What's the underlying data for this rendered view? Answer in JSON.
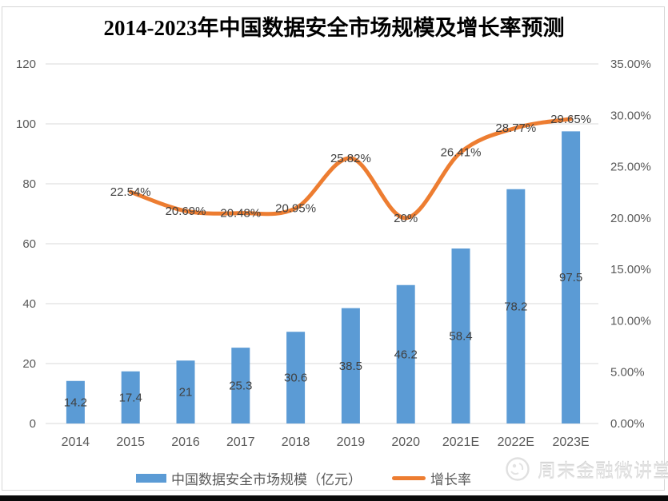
{
  "title": "2014-2023年中国数据安全市场规模及增长率预测",
  "watermark": {
    "text": "周末金融微讲堂",
    "icon": "wechat-account-logo-icon"
  },
  "footer": {
    "bar_color": "#0a0a0a"
  },
  "colors": {
    "bar": "#5B9BD5",
    "line": "#ED7D31",
    "grid": "#D9D9D9",
    "axis_text": "#595959",
    "data_label": "#404040",
    "frame": "#D6D6D6"
  },
  "legend": {
    "position": "bottom",
    "items": [
      {
        "label": "中国数据安全市场规模（亿元）",
        "marker": "bar-swatch",
        "color": "#5B9BD5"
      },
      {
        "label": "增长率",
        "marker": "line-swatch",
        "color": "#ED7D31"
      }
    ]
  },
  "chart_data": {
    "type": "combo-bar-line",
    "title": "2014-2023年中国数据安全市场规模及增长率预测",
    "categories": [
      "2014",
      "2015",
      "2016",
      "2017",
      "2018",
      "2019",
      "2020",
      "2021E",
      "2022E",
      "2023E"
    ],
    "series": [
      {
        "name": "中国数据安全市场规模（亿元）",
        "type": "bar",
        "axis": "left",
        "color": "#5B9BD5",
        "values": [
          14.2,
          17.4,
          21,
          25.3,
          30.6,
          38.5,
          46.2,
          58.4,
          78.2,
          97.5
        ],
        "data_labels": [
          "14.2",
          "17.4",
          "21",
          "25.3",
          "30.6",
          "38.5",
          "46.2",
          "58.4",
          "78.2",
          "97.5"
        ]
      },
      {
        "name": "增长率",
        "type": "line",
        "axis": "right",
        "smooth": true,
        "color": "#ED7D31",
        "categories": [
          "2015",
          "2016",
          "2017",
          "2018",
          "2019",
          "2020",
          "2021E",
          "2022E",
          "2023E"
        ],
        "values": [
          22.54,
          20.69,
          20.48,
          20.95,
          25.82,
          20,
          26.41,
          28.77,
          29.65
        ],
        "unit": "%",
        "data_labels": [
          "22.54%",
          "20.69%",
          "20.48%",
          "20.95%",
          "25.82%",
          "20%",
          "26.41%",
          "28.77%",
          "29.65%"
        ]
      }
    ],
    "left_axis": {
      "min": 0,
      "max": 120,
      "step": 20,
      "tick_labels": [
        "0",
        "20",
        "40",
        "60",
        "80",
        "100",
        "120"
      ]
    },
    "right_axis": {
      "min": 0,
      "max": 35,
      "step": 5,
      "tick_labels": [
        "0.00%",
        "5.00%",
        "10.00%",
        "15.00%",
        "20.00%",
        "25.00%",
        "30.00%",
        "35.00%"
      ]
    },
    "gridlines": "horizontal",
    "legend_position": "bottom"
  }
}
